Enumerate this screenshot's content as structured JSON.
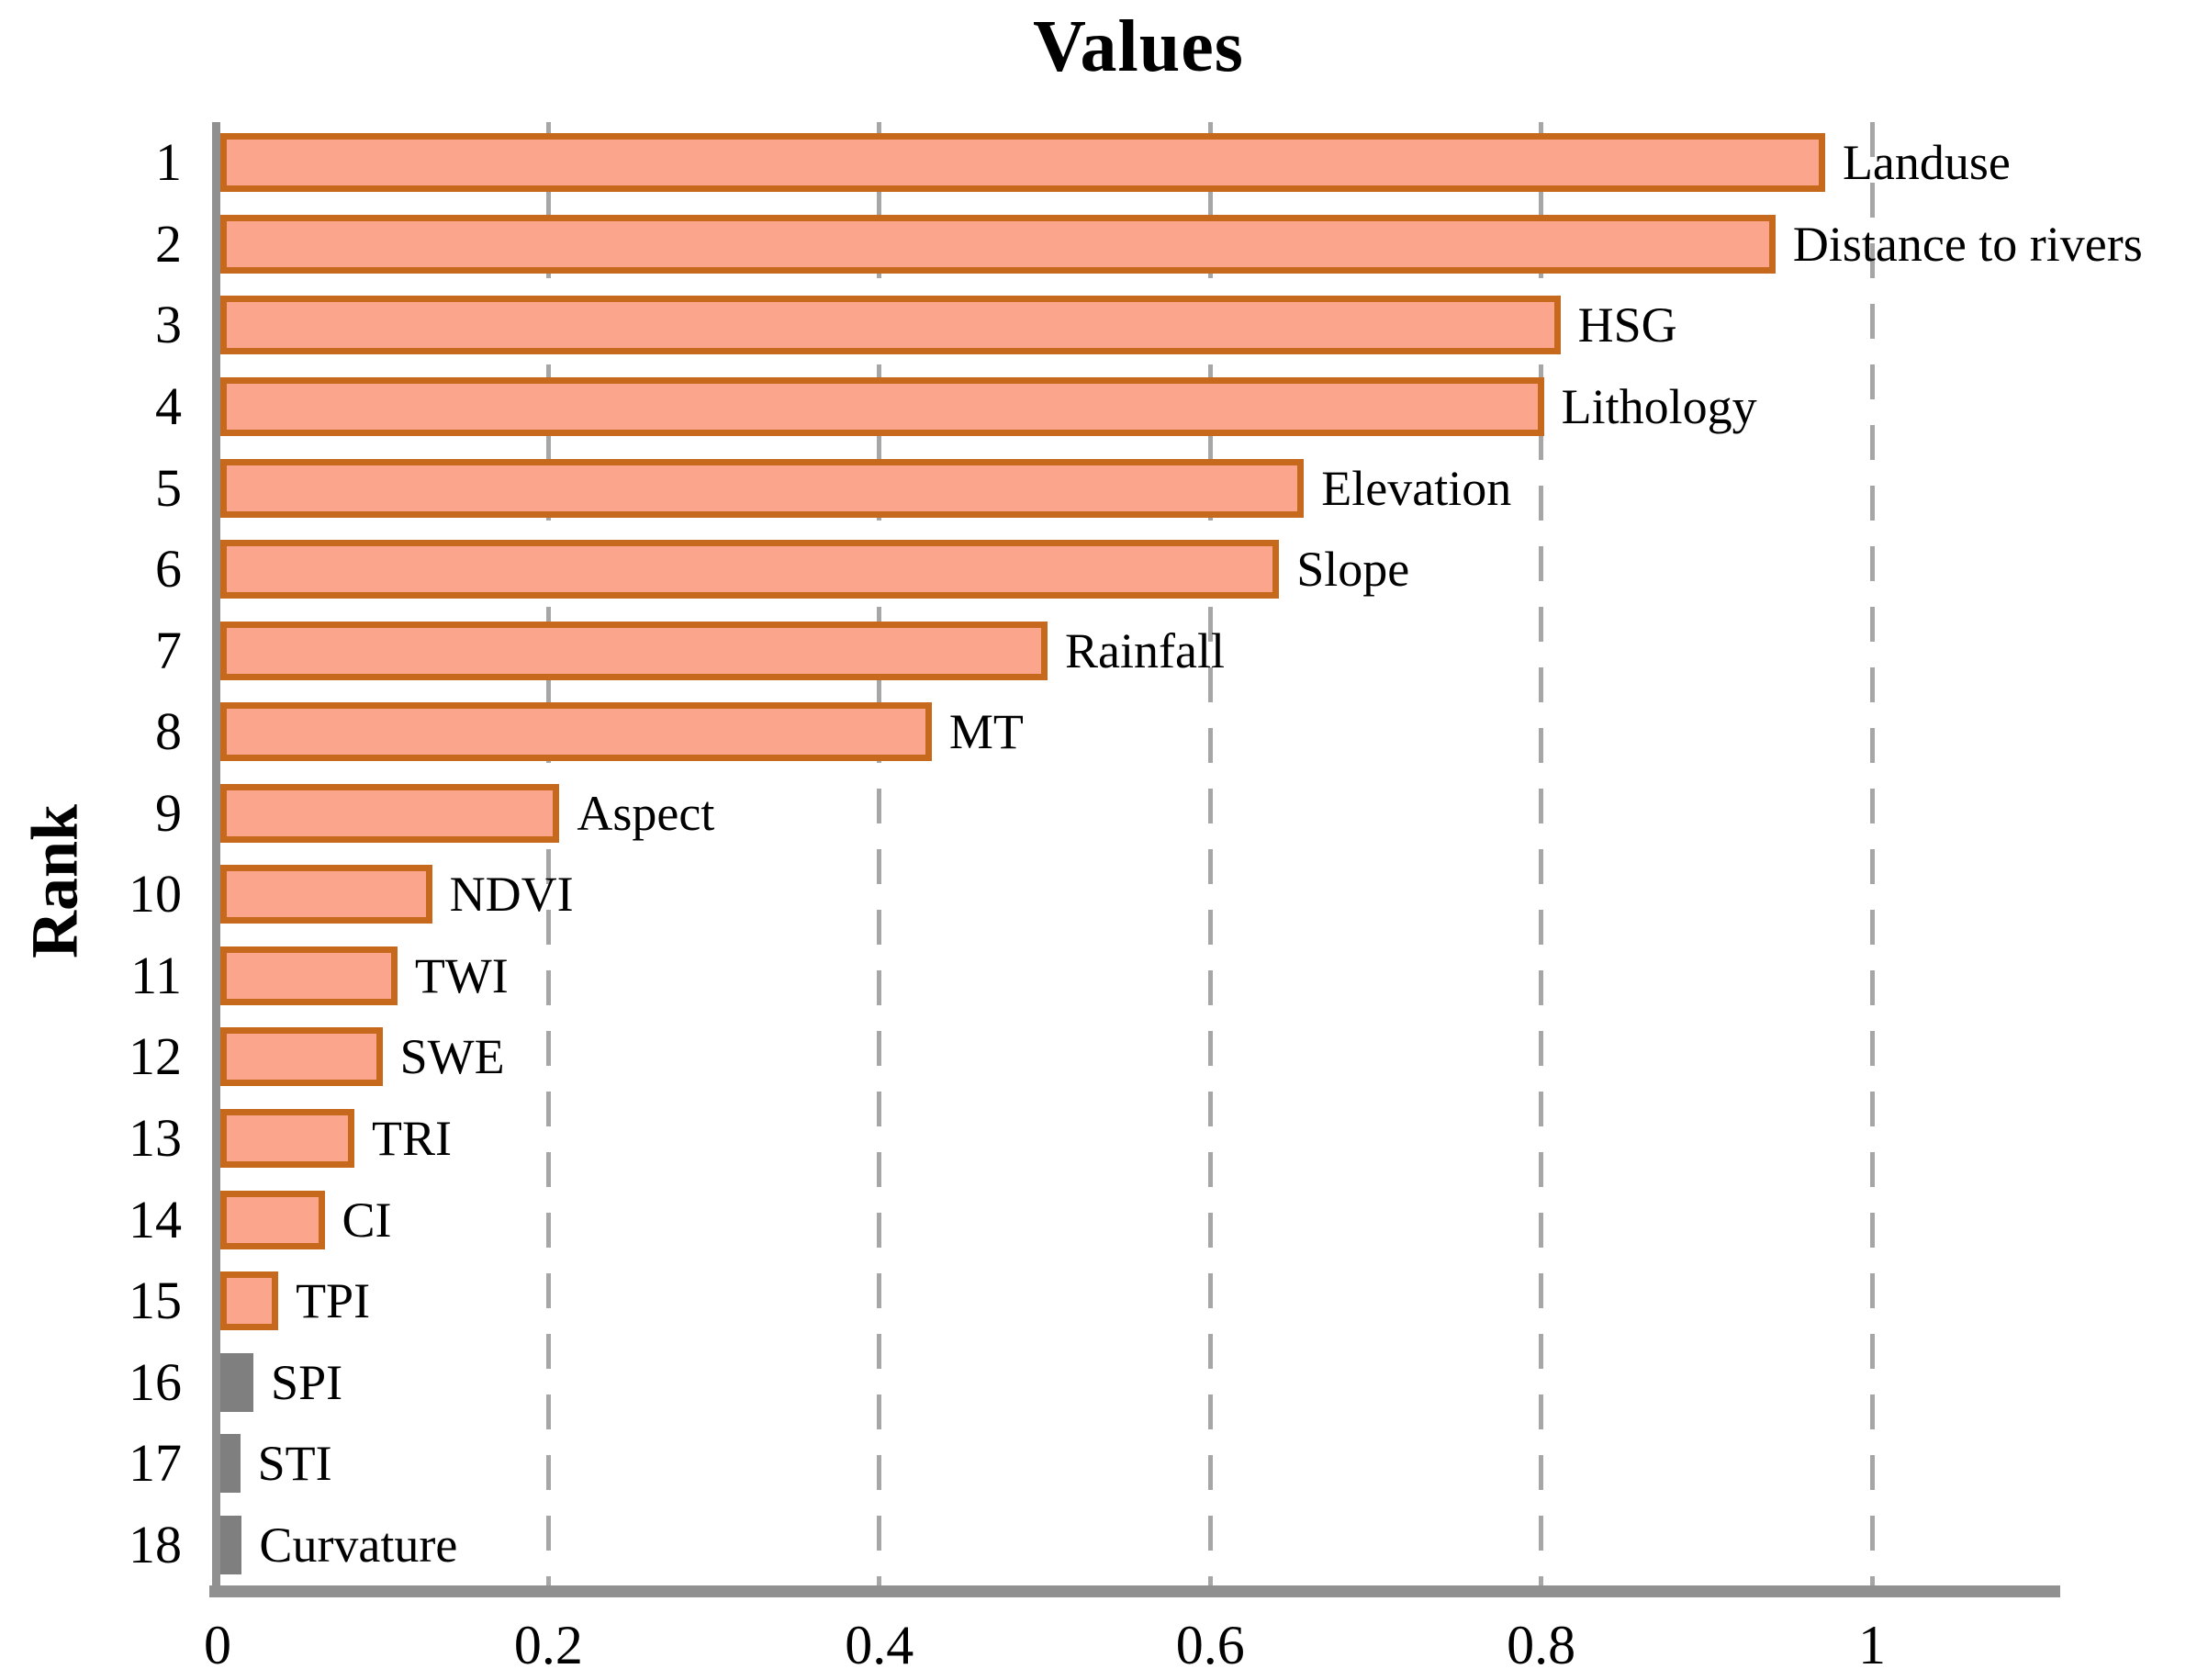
{
  "chart_data": {
    "type": "bar",
    "orientation": "horizontal",
    "title": "Values",
    "ylabel": "Rank",
    "xlabel": "",
    "xlim": [
      0,
      1.1
    ],
    "xticks": [
      "0",
      "0.2",
      "0.4",
      "0.6",
      "0.8",
      "1"
    ],
    "xtick_values": [
      0,
      0.2,
      0.4,
      0.6,
      0.8,
      1.0
    ],
    "grid": "vertical dashed gridlines at each x tick except 0, drawn behind bars",
    "legend": "none",
    "rows": [
      {
        "rank": "1",
        "label": "Landuse",
        "value": 0.97,
        "group": "orange"
      },
      {
        "rank": "2",
        "label": "Distance to rivers",
        "value": 0.94,
        "group": "orange"
      },
      {
        "rank": "3",
        "label": "HSG",
        "value": 0.81,
        "group": "orange"
      },
      {
        "rank": "4",
        "label": "Lithology",
        "value": 0.8,
        "group": "orange"
      },
      {
        "rank": "5",
        "label": "Elevation",
        "value": 0.655,
        "group": "orange"
      },
      {
        "rank": "6",
        "label": "Slope",
        "value": 0.64,
        "group": "orange"
      },
      {
        "rank": "7",
        "label": "Rainfall",
        "value": 0.5,
        "group": "orange"
      },
      {
        "rank": "8",
        "label": "MT",
        "value": 0.43,
        "group": "orange"
      },
      {
        "rank": "9",
        "label": "Aspect",
        "value": 0.205,
        "group": "orange"
      },
      {
        "rank": "10",
        "label": "NDVI",
        "value": 0.128,
        "group": "orange"
      },
      {
        "rank": "11",
        "label": "TWI",
        "value": 0.107,
        "group": "orange"
      },
      {
        "rank": "12",
        "label": "SWE",
        "value": 0.098,
        "group": "orange"
      },
      {
        "rank": "13",
        "label": "TRI",
        "value": 0.081,
        "group": "orange"
      },
      {
        "rank": "14",
        "label": "CI",
        "value": 0.063,
        "group": "orange"
      },
      {
        "rank": "15",
        "label": "TPI",
        "value": 0.035,
        "group": "orange"
      },
      {
        "rank": "16",
        "label": "SPI",
        "value": 0.02,
        "group": "gray"
      },
      {
        "rank": "17",
        "label": "STI",
        "value": 0.012,
        "group": "gray"
      },
      {
        "rank": "18",
        "label": "Curvature",
        "value": 0.013,
        "group": "gray"
      }
    ],
    "colors": {
      "bar_fill": "#faa58c",
      "bar_border": "#c6691c",
      "gray_bar": "#7f7f7f",
      "axis": "#909090",
      "gridline": "#a6a6a6",
      "text": "#000000",
      "background": "#ffffff"
    }
  }
}
